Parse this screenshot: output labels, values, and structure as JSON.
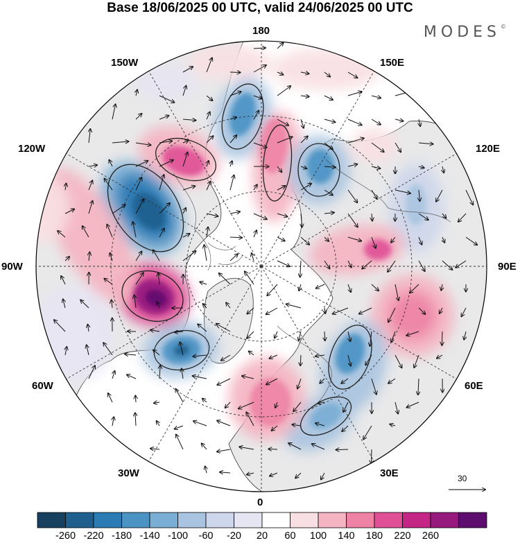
{
  "title": "Base 18/06/2025 00 UTC, valid 24/06/2025 00 UTC",
  "brand": "MODES",
  "brand_mark": "©",
  "longitude_labels": {
    "top": "180",
    "bottom": "0",
    "left": "90W",
    "right": "90E",
    "upper_left": "150W",
    "upper_right": "150E",
    "left_upper": "120W",
    "right_upper": "120E",
    "left_lower": "60W",
    "right_lower": "60E",
    "lower_left": "30W",
    "lower_right": "30E"
  },
  "reference_vector": "30",
  "colorbar": {
    "labels": [
      "-260",
      "-220",
      "-180",
      "-140",
      "-100",
      "-60",
      "-20",
      "20",
      "60",
      "100",
      "140",
      "180",
      "220",
      "260"
    ],
    "colors": [
      "#17405f",
      "#1f5f8e",
      "#2b7bb5",
      "#4a93c4",
      "#7aaed4",
      "#a9c4e0",
      "#cdd6ea",
      "#e6e5f2",
      "#ffffff",
      "#f8dfe3",
      "#f4b4c1",
      "#ee83a6",
      "#e05096",
      "#c42686",
      "#961a7e",
      "#5d0d6e"
    ]
  },
  "map_features": {
    "positive_anomaly_color": "#ee83a6",
    "negative_anomaly_color": "#4a93c4",
    "land_fill": "#e9e9ea",
    "coastline_color": "#333333"
  }
}
